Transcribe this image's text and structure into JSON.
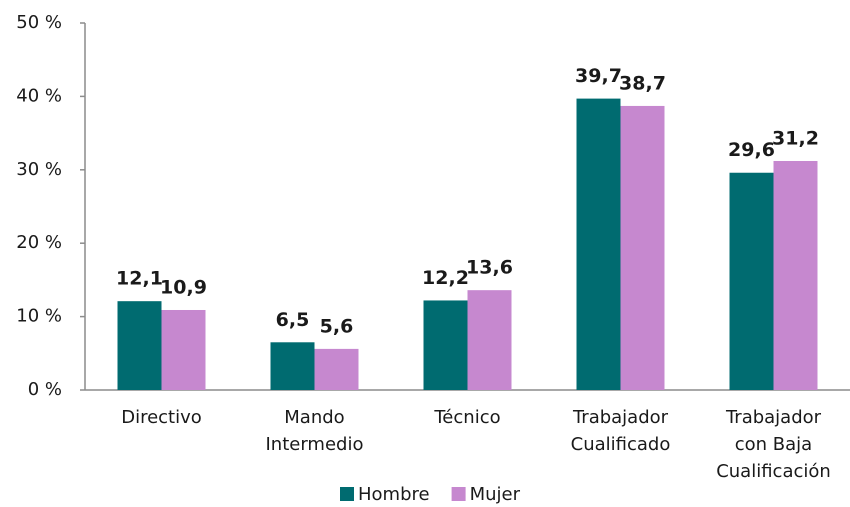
{
  "chart_data": {
    "type": "bar",
    "categories": [
      [
        "Directivo"
      ],
      [
        "Mando",
        "Intermedio"
      ],
      [
        "Técnico"
      ],
      [
        "Trabajador",
        "Cualificado"
      ],
      [
        "Trabajador",
        "con Baja",
        "Cualificación"
      ]
    ],
    "series": [
      {
        "name": "Hombre",
        "color": "#006b70",
        "values": [
          12.1,
          6.5,
          12.2,
          39.7,
          29.6
        ],
        "value_labels": [
          "12,1",
          "6,5",
          "12,2",
          "39,7",
          "29,6"
        ]
      },
      {
        "name": "Mujer",
        "color": "#c688cf",
        "values": [
          10.9,
          5.6,
          13.6,
          38.7,
          31.2
        ],
        "value_labels": [
          "10,9",
          "5,6",
          "13,6",
          "38,7",
          "31,2"
        ]
      }
    ],
    "ylim": [
      0,
      50
    ],
    "yticks": [
      {
        "value": 0,
        "label": "0 %"
      },
      {
        "value": 10,
        "label": "10 %"
      },
      {
        "value": 20,
        "label": "20 %"
      },
      {
        "value": 30,
        "label": "30 %"
      },
      {
        "value": 40,
        "label": "40 %"
      },
      {
        "value": 50,
        "label": "50 %"
      }
    ],
    "grid": false,
    "legend": "bottom"
  }
}
